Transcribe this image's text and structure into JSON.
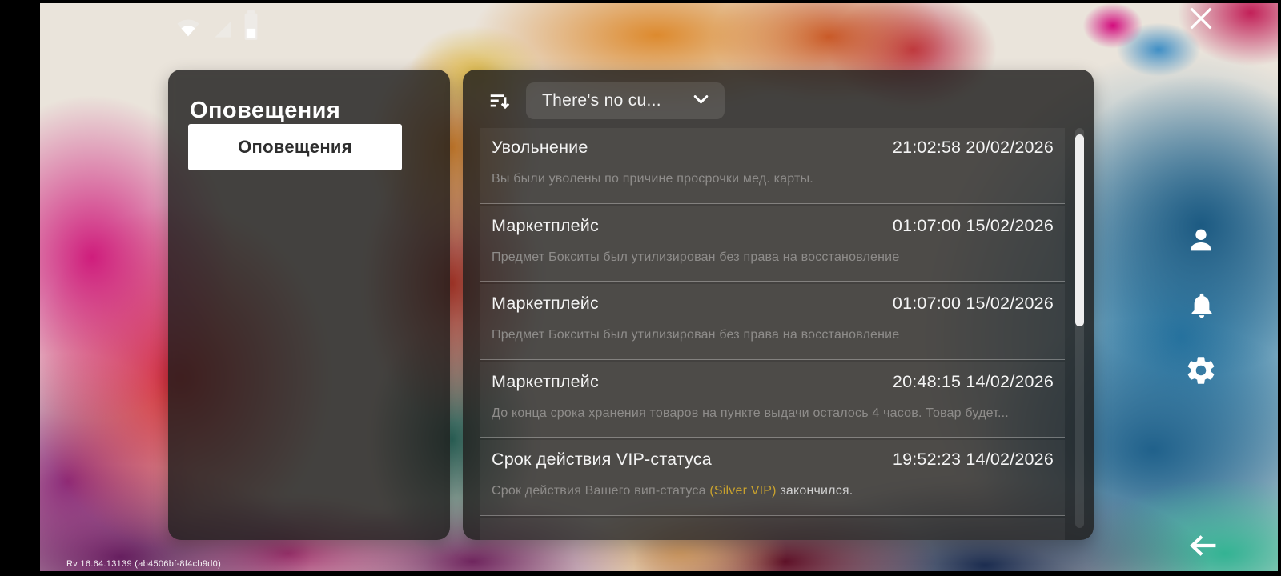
{
  "status_bar": {
    "icons": [
      "wifi",
      "cellular-signal",
      "battery"
    ]
  },
  "left_panel": {
    "title": "Оповещения",
    "tab_label": "Оповещения"
  },
  "right_panel": {
    "filter_value": "There's no cu...",
    "notifications": [
      {
        "title": "Увольнение",
        "timestamp": "21:02:58 20/02/2026",
        "message": "Вы были уволены по причине просрочки мед. карты."
      },
      {
        "title": "Маркетплейс",
        "timestamp": "01:07:00 15/02/2026",
        "message": "Предмет Бокситы был утилизирован без права на восстановление"
      },
      {
        "title": "Маркетплейс",
        "timestamp": "01:07:00 15/02/2026",
        "message": "Предмет Бокситы был утилизирован без права на восстановление"
      },
      {
        "title": "Маркетплейс",
        "timestamp": "20:48:15 14/02/2026",
        "message": "До конца срока хранения товаров на пункте выдачи осталось 4 часов. Товар будет..."
      },
      {
        "title": "Срок действия VIP-статуса",
        "timestamp": "19:52:23 14/02/2026",
        "message": "Срок действия Вашего вип-статуса ",
        "message_highlight": "(Silver VIP)",
        "message_suffix": " закончился."
      }
    ]
  },
  "rail_icons": [
    "person",
    "bell",
    "gear"
  ],
  "footer": {
    "version": "Rv 16.64.13139 (ab4506bf-8f4cb9d0)"
  },
  "colors": {
    "vip_highlight": "#c9a22e",
    "panel_bg": "rgba(30,29,28,0.82)",
    "title_text": "#f4f4f4",
    "muted_text": "#8e8c8a"
  }
}
